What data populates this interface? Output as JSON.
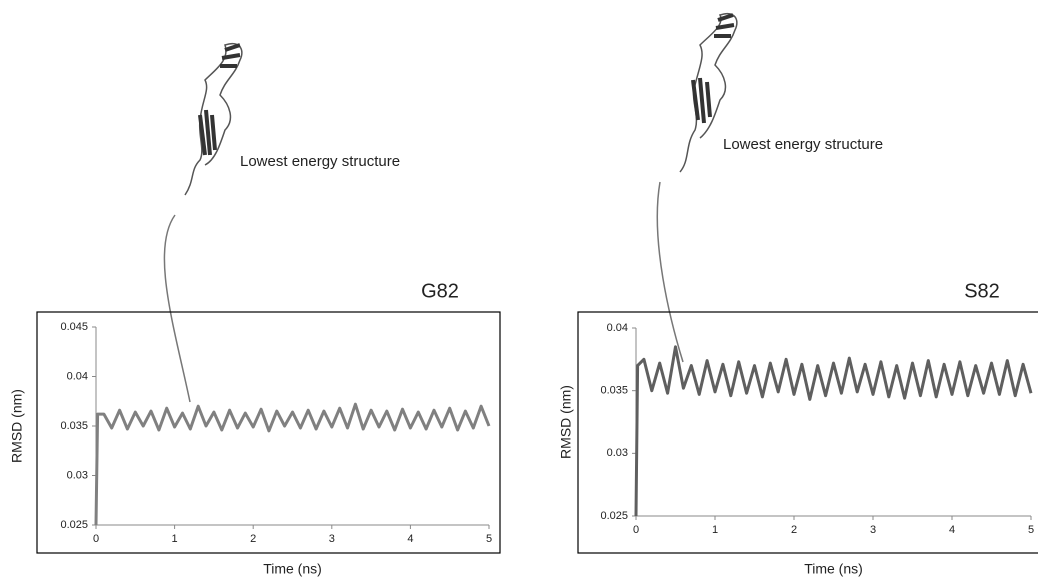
{
  "chart_data": [
    {
      "type": "line",
      "title": "G82",
      "xlabel": "Time (ns)",
      "ylabel": "RMSD (nm)",
      "annotation": "Lowest energy structure",
      "xlim": [
        0,
        5
      ],
      "xticks": [
        0,
        1,
        2,
        3,
        4,
        5
      ],
      "ylim": [
        0.025,
        0.045
      ],
      "yticks": [
        0.025,
        0.03,
        0.035,
        0.04,
        0.045
      ],
      "x": [
        0,
        0.02,
        0.1,
        0.2,
        0.3,
        0.4,
        0.5,
        0.6,
        0.7,
        0.8,
        0.9,
        1.0,
        1.1,
        1.2,
        1.3,
        1.4,
        1.5,
        1.6,
        1.7,
        1.8,
        1.9,
        2.0,
        2.1,
        2.2,
        2.3,
        2.4,
        2.5,
        2.6,
        2.7,
        2.8,
        2.9,
        3.0,
        3.1,
        3.2,
        3.3,
        3.4,
        3.5,
        3.6,
        3.7,
        3.8,
        3.9,
        4.0,
        4.1,
        4.2,
        4.3,
        4.4,
        4.5,
        4.6,
        4.7,
        4.8,
        4.9,
        5.0
      ],
      "series": [
        {
          "color": "#808080",
          "values": [
            0.025,
            0.0362,
            0.0362,
            0.0348,
            0.0366,
            0.0347,
            0.0364,
            0.035,
            0.0365,
            0.0346,
            0.0368,
            0.0349,
            0.0363,
            0.0347,
            0.037,
            0.035,
            0.0364,
            0.0346,
            0.0366,
            0.0348,
            0.0363,
            0.0349,
            0.0367,
            0.0345,
            0.0365,
            0.035,
            0.0364,
            0.0348,
            0.0366,
            0.0347,
            0.0365,
            0.0349,
            0.0368,
            0.0348,
            0.0372,
            0.0347,
            0.0366,
            0.0349,
            0.0365,
            0.0346,
            0.0367,
            0.0348,
            0.0364,
            0.0347,
            0.0366,
            0.0349,
            0.0368,
            0.0346,
            0.0365,
            0.0348,
            0.037,
            0.035
          ]
        }
      ]
    },
    {
      "type": "line",
      "title": "S82",
      "xlabel": "Time (ns)",
      "ylabel": "RMSD (nm)",
      "annotation": "Lowest energy structure",
      "xlim": [
        0,
        5
      ],
      "xticks": [
        0,
        1,
        2,
        3,
        4,
        5
      ],
      "ylim": [
        0.025,
        0.04
      ],
      "yticks": [
        0.025,
        0.03,
        0.035,
        0.04
      ],
      "x": [
        0,
        0.02,
        0.1,
        0.2,
        0.3,
        0.4,
        0.5,
        0.6,
        0.7,
        0.8,
        0.9,
        1.0,
        1.1,
        1.2,
        1.3,
        1.4,
        1.5,
        1.6,
        1.7,
        1.8,
        1.9,
        2.0,
        2.1,
        2.2,
        2.3,
        2.4,
        2.5,
        2.6,
        2.7,
        2.8,
        2.9,
        3.0,
        3.1,
        3.2,
        3.3,
        3.4,
        3.5,
        3.6,
        3.7,
        3.8,
        3.9,
        4.0,
        4.1,
        4.2,
        4.3,
        4.4,
        4.5,
        4.6,
        4.7,
        4.8,
        4.9,
        5.0
      ],
      "series": [
        {
          "color": "#5f5f5f",
          "values": [
            0.025,
            0.037,
            0.0375,
            0.035,
            0.0372,
            0.0348,
            0.0385,
            0.0352,
            0.037,
            0.0347,
            0.0374,
            0.0349,
            0.0371,
            0.0346,
            0.0373,
            0.0348,
            0.037,
            0.0345,
            0.0372,
            0.0349,
            0.0375,
            0.0347,
            0.0371,
            0.0343,
            0.037,
            0.0346,
            0.0372,
            0.0348,
            0.0376,
            0.0349,
            0.0371,
            0.0347,
            0.0373,
            0.0345,
            0.037,
            0.0344,
            0.0372,
            0.0346,
            0.0374,
            0.0345,
            0.0371,
            0.0347,
            0.0373,
            0.0346,
            0.037,
            0.0348,
            0.0372,
            0.0347,
            0.0374,
            0.0346,
            0.0371,
            0.0348
          ]
        }
      ]
    }
  ]
}
